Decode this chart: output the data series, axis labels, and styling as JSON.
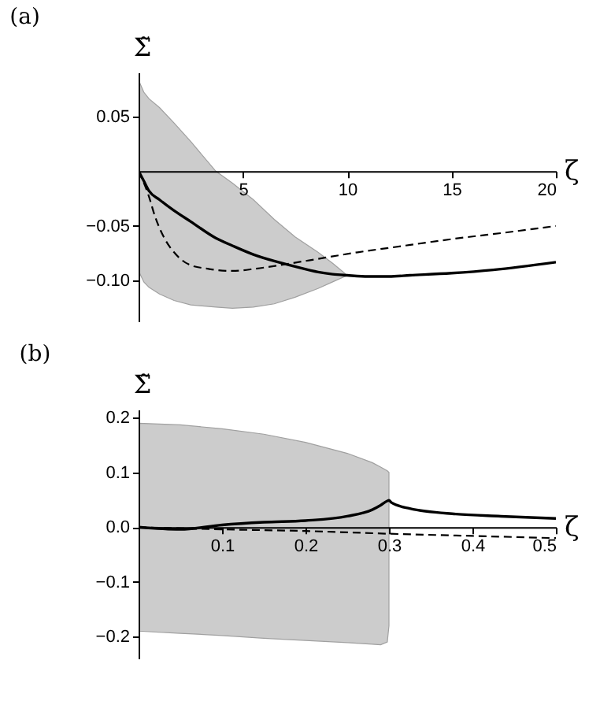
{
  "chart_data": [
    {
      "type": "line",
      "title": "(a)",
      "xlabel": "ζ",
      "ylabel": "Σ̃",
      "xlim": [
        0,
        20
      ],
      "ylim": [
        -0.137,
        0.09
      ],
      "xticks": [
        5,
        10,
        15,
        20
      ],
      "yticks": [
        0.05,
        {
          "value": -0.05,
          "label": "−0.05"
        },
        {
          "value": -0.1,
          "label": "−0.10"
        }
      ],
      "grid": false,
      "series": [
        {
          "type": "line",
          "color": "#000000",
          "line_style": "solid",
          "x": [
            0,
            0.25,
            0.5,
            1,
            1.7,
            2.5,
            3.7,
            4.5,
            5.5,
            6.5,
            7.5,
            8.6,
            9.3,
            10,
            11,
            12,
            13,
            15,
            17,
            20
          ],
          "values": [
            0,
            -0.009,
            -0.018,
            -0.026,
            -0.036,
            -0.046,
            -0.061,
            -0.068,
            -0.076,
            -0.082,
            -0.087,
            -0.092,
            -0.094,
            -0.095,
            -0.096,
            -0.096,
            -0.095,
            -0.093,
            -0.09,
            -0.083
          ],
          "upper": [
            0.083,
            0.072,
            0.066,
            0.058,
            0.044,
            0.027,
            0.0,
            -0.011,
            -0.026,
            -0.044,
            -0.06,
            -0.074,
            -0.084,
            -0.095,
            null,
            null,
            null,
            null,
            null,
            null
          ],
          "lower": [
            -0.091,
            -0.101,
            -0.106,
            -0.112,
            -0.118,
            -0.122,
            -0.124,
            -0.125,
            -0.124,
            -0.121,
            -0.115,
            -0.107,
            -0.101,
            -0.095,
            null,
            null,
            null,
            null,
            null,
            null
          ]
        },
        {
          "type": "line",
          "color": "#000000",
          "line_style": "dashed",
          "x": [
            0,
            0.46,
            0.8,
            1.26,
            1.7,
            2.4,
            3.3,
            4.5,
            5.6,
            7,
            8.6,
            10.5,
            12,
            15,
            18,
            20
          ],
          "values": [
            0,
            -0.021,
            -0.042,
            -0.062,
            -0.074,
            -0.085,
            -0.089,
            -0.091,
            -0.089,
            -0.085,
            -0.08,
            -0.074,
            -0.07,
            -0.062,
            -0.055,
            -0.05
          ]
        }
      ]
    },
    {
      "type": "line",
      "title": "(b)",
      "xlabel": "ζ",
      "ylabel": "Σ̃",
      "xlim": [
        0,
        0.5
      ],
      "ylim": [
        -0.24,
        0.215
      ],
      "xticks": [
        0.1,
        0.2,
        0.3,
        0.4,
        0.5
      ],
      "yticks": [
        0.2,
        0.1,
        {
          "value": 0,
          "label": "0.0"
        },
        {
          "value": -0.1,
          "label": "−0.1"
        },
        {
          "value": -0.2,
          "label": "−0.2"
        }
      ],
      "grid": false,
      "series": [
        {
          "type": "line",
          "color": "#000000",
          "line_style": "solid",
          "x": [
            0,
            0.05,
            0.1,
            0.15,
            0.2,
            0.25,
            0.28,
            0.29,
            0.298,
            0.3,
            0.303,
            0.325,
            0.38,
            0.434,
            0.5
          ],
          "values": [
            0,
            -0.004,
            0.004,
            0.009,
            0.012,
            0.02,
            0.032,
            0.04,
            0.048,
            0.049,
            0.045,
            0.034,
            0.024,
            0.02,
            0.016
          ],
          "upper": [
            0.19,
            0.187,
            0.18,
            0.17,
            0.155,
            0.135,
            0.118,
            0.11,
            0.103,
            0.1,
            null,
            null,
            null,
            null,
            null
          ],
          "lower": [
            -0.19,
            -0.194,
            -0.198,
            -0.203,
            -0.207,
            -0.211,
            -0.214,
            -0.215,
            -0.21,
            -0.18,
            null,
            null,
            null,
            null,
            null
          ]
        },
        {
          "type": "line",
          "color": "#000000",
          "line_style": "dashed",
          "x": [
            0,
            0.1,
            0.2,
            0.3,
            0.4,
            0.5
          ],
          "values": [
            0,
            -0.004,
            -0.007,
            -0.012,
            -0.016,
            -0.02
          ]
        }
      ]
    }
  ]
}
